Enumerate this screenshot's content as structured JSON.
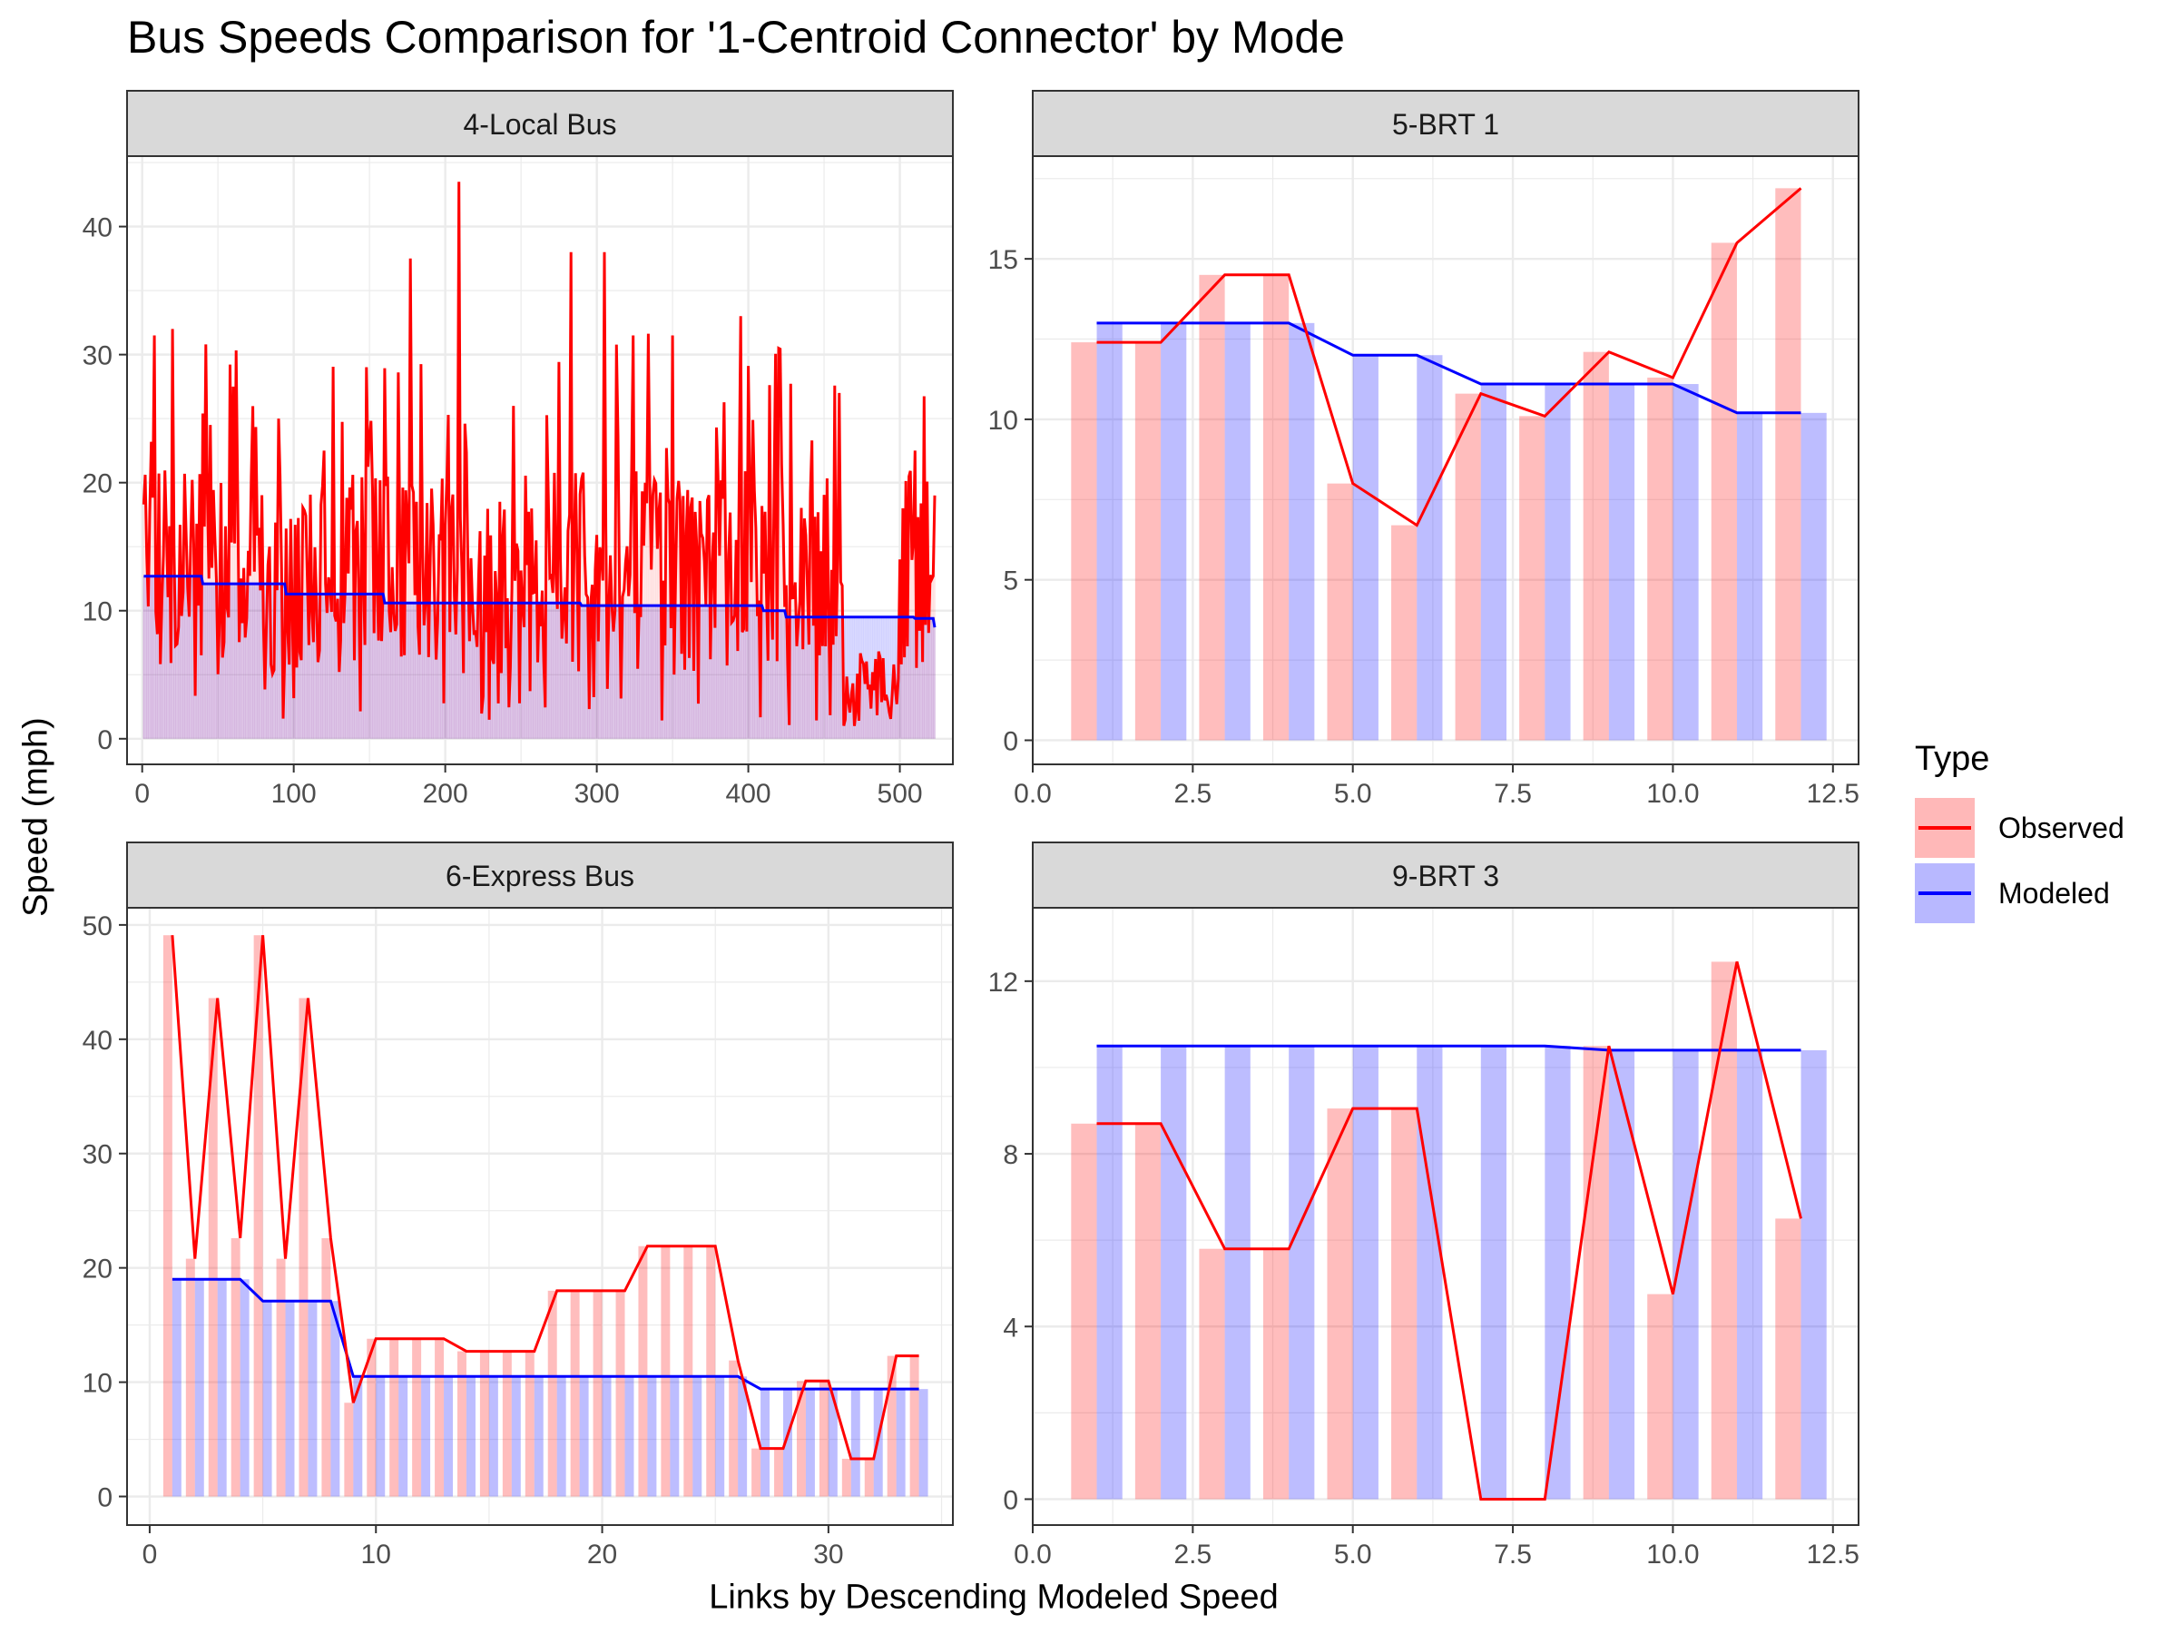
{
  "title": "Bus Speeds Comparison for '1-Centroid Connector' by Mode",
  "xlabel": "Links by Descending Modeled Speed",
  "ylabel": "Speed (mph)",
  "legend": {
    "title": "Type",
    "items": [
      {
        "label": "Observed",
        "color": "#ff0000"
      },
      {
        "label": "Modeled",
        "color": "#0000ff"
      }
    ]
  },
  "chart_data": [
    {
      "type": "bar+line",
      "panel_title": "4-Local Bus",
      "xlim": [
        -10,
        535
      ],
      "ylim": [
        -2,
        45.5
      ],
      "xticks": [
        0,
        100,
        200,
        300,
        400,
        500
      ],
      "xtick_labels": [
        "0",
        "100",
        "200",
        "300",
        "400",
        "500"
      ],
      "yticks": [
        0,
        10,
        20,
        30,
        40
      ],
      "ytick_labels": [
        "0",
        "10",
        "20",
        "30",
        "40"
      ],
      "n_links": 523,
      "modeled_steps": [
        [
          1,
          12.7
        ],
        [
          40,
          12.1
        ],
        [
          95,
          11.3
        ],
        [
          160,
          10.6
        ],
        [
          290,
          10.4
        ],
        [
          410,
          10.0
        ],
        [
          425,
          9.5
        ],
        [
          510,
          9.4
        ],
        [
          523,
          8.7
        ]
      ],
      "observed_sample": [
        [
          1,
          18.3
        ],
        [
          8,
          31.5
        ],
        [
          20,
          32.0
        ],
        [
          45,
          24.5
        ],
        [
          60,
          27.5
        ],
        [
          90,
          25.0
        ],
        [
          120,
          22.5
        ],
        [
          150,
          23.5
        ],
        [
          177,
          37.5
        ],
        [
          209,
          43.5
        ],
        [
          245,
          26.0
        ],
        [
          283,
          38.0
        ],
        [
          305,
          38.0
        ],
        [
          350,
          31.5
        ],
        [
          395,
          33.0
        ],
        [
          420,
          30.5
        ],
        [
          460,
          27.0
        ],
        [
          470,
          1.0
        ],
        [
          490,
          3.0
        ],
        [
          500,
          14.0
        ],
        [
          510,
          22.5
        ],
        [
          523,
          19.0
        ]
      ],
      "series": [
        {
          "name": "Observed",
          "color": "#ff0000"
        },
        {
          "name": "Modeled",
          "color": "#0000ff"
        }
      ]
    },
    {
      "type": "bar+line",
      "panel_title": "5-BRT 1",
      "xlim": [
        0,
        12.9
      ],
      "ylim": [
        -0.75,
        18.2
      ],
      "xticks": [
        0,
        2.5,
        5,
        7.5,
        10,
        12.5
      ],
      "xtick_labels": [
        "0.0",
        "2.5",
        "5.0",
        "7.5",
        "10.0",
        "12.5"
      ],
      "yticks": [
        0,
        5,
        10,
        15
      ],
      "ytick_labels": [
        "0",
        "5",
        "10",
        "15"
      ],
      "x": [
        1,
        2,
        3,
        4,
        5,
        6,
        7,
        8,
        9,
        10,
        11,
        12
      ],
      "series": [
        {
          "name": "Observed",
          "color": "#ff0000",
          "values": [
            12.4,
            12.4,
            14.5,
            14.5,
            8.0,
            6.7,
            10.8,
            10.1,
            12.1,
            11.3,
            15.5,
            17.2
          ]
        },
        {
          "name": "Modeled",
          "color": "#0000ff",
          "values": [
            13.0,
            13.0,
            13.0,
            13.0,
            12.0,
            12.0,
            11.1,
            11.1,
            11.1,
            11.1,
            10.2,
            10.2
          ]
        }
      ]
    },
    {
      "type": "bar+line",
      "panel_title": "6-Express Bus",
      "xlim": [
        -1,
        35.5
      ],
      "ylim": [
        -2.5,
        51.5
      ],
      "xticks": [
        0,
        10,
        20,
        30
      ],
      "xtick_labels": [
        "0",
        "10",
        "20",
        "30"
      ],
      "yticks": [
        0,
        10,
        20,
        30,
        40,
        50
      ],
      "ytick_labels": [
        "0",
        "10",
        "20",
        "30",
        "40",
        "50"
      ],
      "x": [
        1,
        2,
        3,
        4,
        5,
        6,
        7,
        8,
        9,
        10,
        11,
        12,
        13,
        14,
        15,
        16,
        17,
        18,
        19,
        20,
        21,
        22,
        23,
        24,
        25,
        26,
        27,
        28,
        29,
        30,
        31,
        32,
        33,
        34
      ],
      "series": [
        {
          "name": "Observed",
          "color": "#ff0000",
          "values": [
            49.1,
            20.8,
            43.6,
            22.6,
            49.1,
            20.8,
            43.6,
            22.6,
            8.2,
            13.8,
            13.8,
            13.8,
            13.8,
            12.7,
            12.7,
            12.7,
            12.7,
            18.0,
            18.0,
            18.0,
            18.0,
            21.9,
            21.9,
            21.9,
            21.9,
            11.9,
            4.2,
            4.2,
            10.1,
            10.1,
            3.3,
            3.3,
            12.3,
            12.3
          ]
        },
        {
          "name": "Modeled",
          "color": "#0000ff",
          "values": [
            19.0,
            19.0,
            19.0,
            19.0,
            17.1,
            17.1,
            17.1,
            17.1,
            10.5,
            10.5,
            10.5,
            10.5,
            10.5,
            10.5,
            10.5,
            10.5,
            10.5,
            10.5,
            10.5,
            10.5,
            10.5,
            10.5,
            10.5,
            10.5,
            10.5,
            10.5,
            9.4,
            9.4,
            9.4,
            9.4,
            9.4,
            9.4,
            9.4,
            9.4
          ]
        }
      ]
    },
    {
      "type": "bar+line",
      "panel_title": "9-BRT 3",
      "xlim": [
        0,
        12.9
      ],
      "ylim": [
        -0.6,
        13.7
      ],
      "xticks": [
        0,
        2.5,
        5,
        7.5,
        10,
        12.5
      ],
      "xtick_labels": [
        "0.0",
        "2.5",
        "5.0",
        "7.5",
        "10.0",
        "12.5"
      ],
      "yticks": [
        0,
        4,
        8,
        12
      ],
      "ytick_labels": [
        "0",
        "4",
        "8",
        "12"
      ],
      "x": [
        1,
        2,
        3,
        4,
        5,
        6,
        7,
        8,
        9,
        10,
        11,
        12
      ],
      "series": [
        {
          "name": "Observed",
          "color": "#ff0000",
          "values": [
            8.7,
            8.7,
            5.8,
            5.8,
            9.05,
            9.05,
            0.0,
            0.0,
            10.5,
            4.75,
            12.45,
            6.5
          ]
        },
        {
          "name": "Modeled",
          "color": "#0000ff",
          "values": [
            10.5,
            10.5,
            10.5,
            10.5,
            10.5,
            10.5,
            10.5,
            10.5,
            10.4,
            10.4,
            10.4,
            10.4
          ]
        }
      ]
    }
  ]
}
